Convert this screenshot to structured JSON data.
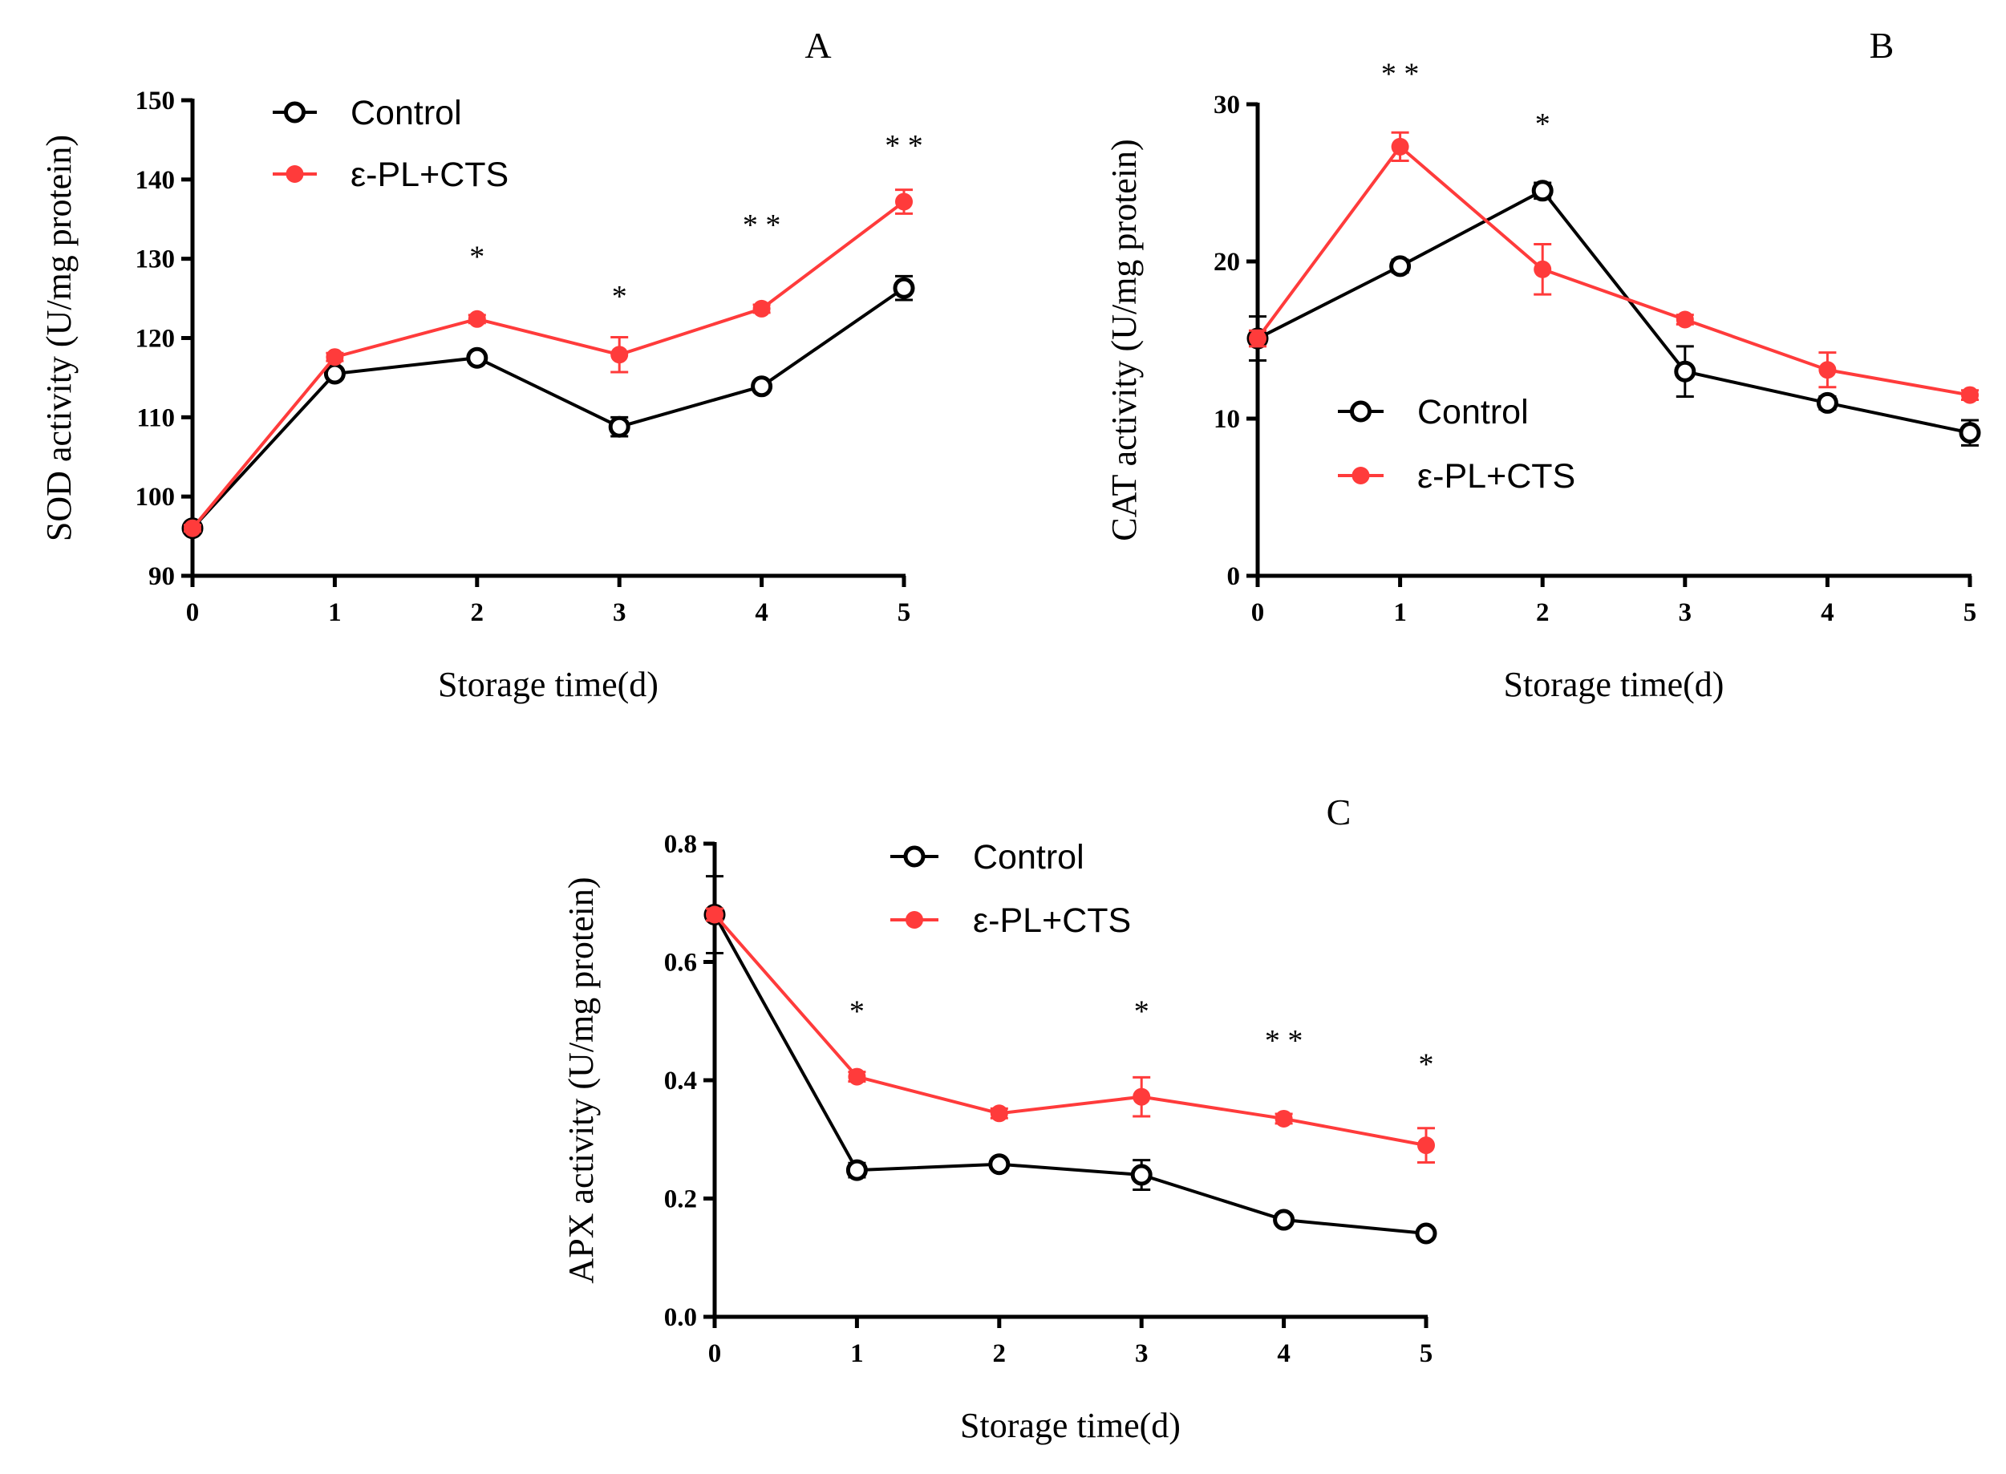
{
  "chart_data": [
    {
      "panel": "A",
      "type": "line",
      "title": "A",
      "xlabel": "Storage time(d)",
      "ylabel": "SOD activity (U/mg protein)",
      "x": [
        0,
        1,
        2,
        3,
        4,
        5
      ],
      "xlim": [
        0,
        5
      ],
      "ylim": [
        90,
        150
      ],
      "yticks": [
        90,
        100,
        110,
        120,
        130,
        140,
        150
      ],
      "xticks": [
        0,
        1,
        2,
        3,
        4,
        5
      ],
      "legend": "top-left",
      "series": [
        {
          "name": "Control",
          "color": "#000000",
          "marker": "open-circle",
          "values": [
            96,
            115.5,
            117.5,
            108.8,
            113.9,
            126.3
          ],
          "errors": [
            0.4,
            0.5,
            0.5,
            1.2,
            0.6,
            1.5
          ]
        },
        {
          "name": "ε-PL+CTS",
          "color": "#ff3b3b",
          "marker": "filled-circle",
          "values": [
            96,
            117.6,
            122.4,
            117.9,
            123.7,
            137.2
          ],
          "errors": [
            0.4,
            0.5,
            0.5,
            2.2,
            0.5,
            1.5
          ]
        }
      ],
      "significance": [
        {
          "x": 2,
          "label": "*",
          "y": 129
        },
        {
          "x": 3,
          "label": "*",
          "y": 124
        },
        {
          "x": 4,
          "label": "**",
          "y": 133
        },
        {
          "x": 5,
          "label": "**",
          "y": 143
        }
      ]
    },
    {
      "panel": "B",
      "type": "line",
      "title": "B",
      "xlabel": "Storage time(d)",
      "ylabel": "CAT activity (U/mg protein)",
      "x": [
        0,
        1,
        2,
        3,
        4,
        5
      ],
      "xlim": [
        0,
        5
      ],
      "ylim": [
        0,
        30
      ],
      "yticks": [
        0,
        10,
        20,
        30
      ],
      "xticks": [
        0,
        1,
        2,
        3,
        4,
        5
      ],
      "legend": "center-left",
      "series": [
        {
          "name": "Control",
          "color": "#000000",
          "marker": "open-circle",
          "values": [
            15.1,
            19.7,
            24.5,
            13.0,
            11.0,
            9.1
          ],
          "errors": [
            1.4,
            0.4,
            0.5,
            1.6,
            0.4,
            0.8
          ]
        },
        {
          "name": "ε-PL+CTS",
          "color": "#ff3b3b",
          "marker": "filled-circle",
          "values": [
            15.1,
            27.3,
            19.5,
            16.3,
            13.1,
            11.5
          ],
          "errors": [
            0.5,
            0.9,
            1.6,
            0.3,
            1.1,
            0.3
          ]
        }
      ],
      "significance": [
        {
          "x": 1,
          "label": "**",
          "y": 31.3
        },
        {
          "x": 2,
          "label": "*",
          "y": 28.1
        }
      ]
    },
    {
      "panel": "C",
      "type": "line",
      "title": "C",
      "xlabel": "Storage time(d)",
      "ylabel": "APX activity (U/mg protein)",
      "x": [
        0,
        1,
        2,
        3,
        4,
        5
      ],
      "xlim": [
        0,
        5
      ],
      "ylim": [
        0.0,
        0.8
      ],
      "yticks": [
        "0.0",
        "0.2",
        "0.4",
        "0.6",
        "0.8"
      ],
      "xticks": [
        0,
        1,
        2,
        3,
        4,
        5
      ],
      "legend": "top-left",
      "series": [
        {
          "name": "Control",
          "color": "#000000",
          "marker": "open-circle",
          "values": [
            0.68,
            0.248,
            0.258,
            0.24,
            0.164,
            0.141
          ],
          "errors": [
            0.065,
            0.012,
            0.008,
            0.025,
            0.008,
            0.008
          ]
        },
        {
          "name": "ε-PL+CTS",
          "color": "#ff3b3b",
          "marker": "filled-circle",
          "values": [
            0.68,
            0.406,
            0.344,
            0.372,
            0.335,
            0.29
          ],
          "errors": [
            0.01,
            0.008,
            0.008,
            0.033,
            0.008,
            0.029
          ]
        }
      ],
      "significance": [
        {
          "x": 1,
          "label": "*",
          "y": 0.5
        },
        {
          "x": 3,
          "label": "*",
          "y": 0.5
        },
        {
          "x": 4,
          "label": "**",
          "y": 0.45
        },
        {
          "x": 5,
          "label": "*",
          "y": 0.41
        }
      ]
    }
  ]
}
